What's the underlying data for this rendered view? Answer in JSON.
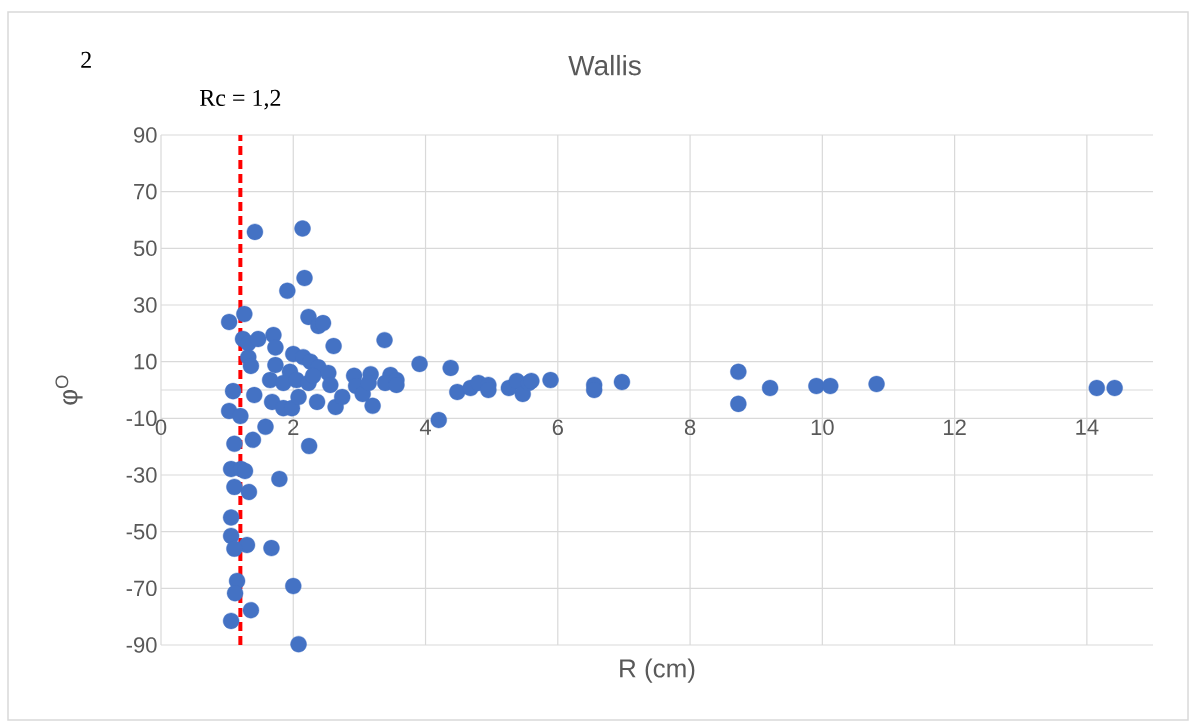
{
  "chart_data": {
    "type": "scatter",
    "title": "Wallis",
    "xlabel": "R (cm)",
    "ylabel": "φ$^{O}$",
    "annotations": [
      "2"
    ],
    "x": [
      1.03,
      1.26,
      1.42,
      2.14,
      2.17,
      1.91,
      1.24,
      1.32,
      1.47,
      1.7,
      1.73,
      2.23,
      2.38,
      2.45,
      2.61,
      1.32,
      1.36,
      1.73,
      2.0,
      2.15,
      2.26,
      2.38,
      2.53,
      1.95,
      1.65,
      1.85,
      2.05,
      2.23,
      2.3,
      2.56,
      1.09,
      1.41,
      1.68,
      1.85,
      1.98,
      2.08,
      2.36,
      2.64,
      2.74,
      2.92,
      2.95,
      3.05,
      3.2,
      3.17,
      3.14,
      3.38,
      3.47,
      3.39,
      3.56,
      3.56,
      3.91,
      4.38,
      4.2,
      4.48,
      4.68,
      4.8,
      4.95,
      4.95,
      5.26,
      5.38,
      5.47,
      5.56,
      5.6,
      5.89,
      6.55,
      6.55,
      6.97,
      8.73,
      8.73,
      9.21,
      9.91,
      10.12,
      10.82,
      14.15,
      14.42,
      1.03,
      1.2,
      1.39,
      1.11,
      1.58,
      2.24,
      1.06,
      1.21,
      1.27,
      1.11,
      1.33,
      1.79,
      1.06,
      1.06,
      1.3,
      1.11,
      1.67,
      1.15,
      1.12,
      1.36,
      1.06,
      2.0,
      2.08
    ],
    "values": [
      24,
      26.8,
      55.8,
      57,
      39.5,
      35,
      18,
      16.5,
      18,
      19.4,
      15,
      25.8,
      22.6,
      23.6,
      15.5,
      11.6,
      8.5,
      8.8,
      12.7,
      11.6,
      10,
      8,
      6,
      6.4,
      3.5,
      2.5,
      3.5,
      2.5,
      5,
      1.8,
      -0.4,
      -1.8,
      -4.2,
      -6.4,
      -6.4,
      -2.5,
      -4.2,
      -6,
      -2.5,
      5,
      1.4,
      -1.4,
      -5.6,
      5.6,
      2.5,
      17.6,
      5.3,
      2.5,
      3.5,
      1.8,
      9.2,
      7.8,
      -10.6,
      -0.7,
      0.7,
      2.5,
      1.8,
      0,
      0.7,
      3.2,
      -1.4,
      2.5,
      3.2,
      3.5,
      1.8,
      0,
      2.8,
      6.4,
      -4.9,
      0.7,
      1.4,
      1.4,
      2.1,
      0.7,
      0.7,
      -7.4,
      -9.2,
      -17.6,
      -19,
      -13,
      -19.8,
      -27.9,
      -27.9,
      -28.6,
      -34.2,
      -36,
      -31.4,
      -45,
      -51.5,
      -54.7,
      -56,
      -55.8,
      -67.4,
      -71.7,
      -77.7,
      -81.5,
      -69.2,
      -89.7
    ],
    "color": "#4472c4",
    "grid": true,
    "xlim": [
      0,
      15
    ],
    "xticks": [
      0,
      2,
      4,
      6,
      8,
      10,
      12,
      14
    ],
    "ylim": [
      -90,
      90
    ],
    "yticks": [
      -90,
      -70,
      -50,
      -30,
      -10,
      10,
      30,
      50,
      70,
      90
    ],
    "ref_lines": [
      {
        "axis": "x",
        "value": 1.2,
        "label": "Rc = 1,2",
        "color": "#ff0000",
        "line_style": "dashed"
      }
    ]
  }
}
